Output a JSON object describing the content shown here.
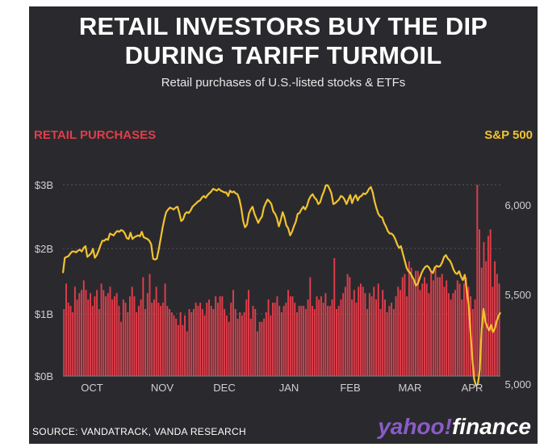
{
  "title_line1": "RETAIL INVESTORS BUY THE DIP",
  "title_line2": "DURING TARIFF TURMOIL",
  "subtitle": "Retail purchases of U.S.-listed stocks & ETFs",
  "left_axis_title": "RETAIL PURCHASES",
  "right_axis_title": "S&P 500",
  "source": "SOURCE: VANDATRACK, VANDA RESEARCH",
  "logo_yahoo": "yahoo!",
  "logo_finance": "finance",
  "colors": {
    "background": "#2a2a2e",
    "bars": "#e23d4a",
    "line": "#f2c230",
    "grid": "#55555a",
    "text": "#cfcfcf"
  },
  "chart_data": {
    "type": "bar+line",
    "x_labels": [
      "OCT",
      "NOV",
      "DEC",
      "JAN",
      "FEB",
      "MAR",
      "APR"
    ],
    "left_axis": {
      "ticks": [
        "$0B",
        "$1B",
        "$2B",
        "$3B"
      ],
      "range": [
        0,
        3.2
      ],
      "unit": "USD billions"
    },
    "right_axis": {
      "ticks": [
        "5,000",
        "5,500",
        "6,000"
      ],
      "range": [
        4900,
        6150
      ]
    },
    "grid": true,
    "series": [
      {
        "kind": "bar",
        "values": [
          1.05,
          1.45,
          1.15,
          1.1,
          1.0,
          1.4,
          1.2,
          1.3,
          1.35,
          1.5,
          1.35,
          1.2,
          1.3,
          1.1,
          1.25,
          1.35,
          1.05,
          1.45,
          1.35,
          1.25,
          1.3,
          1.4,
          1.2,
          1.25,
          1.3,
          1.1,
          0.85,
          1.2,
          1.15,
          1.0,
          1.25,
          1.4,
          1.25,
          1.0,
          1.1,
          1.2,
          1.55,
          1.05,
          1.3,
          1.6,
          1.15,
          1.2,
          1.4,
          1.15,
          1.1,
          1.15,
          1.45,
          1.1,
          1.05,
          1.0,
          0.95,
          0.9,
          0.8,
          1.0,
          0.8,
          0.95,
          0.7,
          1.05,
          1.0,
          1.05,
          1.15,
          1.1,
          1.15,
          1.05,
          0.95,
          1.15,
          1.2,
          1.1,
          1.05,
          1.25,
          1.15,
          1.25,
          1.25,
          1.05,
          0.95,
          0.85,
          1.15,
          1.35,
          1.05,
          0.9,
          1.0,
          0.95,
          1.0,
          1.2,
          1.35,
          0.9,
          1.1,
          1.05,
          0.7,
          0.85,
          0.85,
          0.9,
          1.0,
          1.2,
          0.95,
          1.15,
          1.15,
          1.25,
          1.1,
          1.0,
          1.1,
          1.15,
          1.35,
          1.25,
          1.25,
          1.15,
          1.0,
          1.1,
          1.1,
          1.1,
          1.05,
          1.2,
          1.55,
          1.1,
          1.05,
          1.25,
          1.2,
          1.25,
          1.15,
          1.3,
          1.1,
          1.1,
          1.2,
          1.85,
          1.05,
          1.1,
          1.2,
          1.3,
          1.4,
          1.6,
          1.55,
          1.2,
          1.35,
          1.15,
          1.4,
          1.45,
          1.4,
          1.3,
          1.05,
          1.3,
          1.25,
          1.4,
          1.2,
          1.45,
          1.05,
          1.35,
          1.2,
          1.0,
          1.1,
          1.15,
          1.05,
          1.25,
          1.4,
          1.35,
          1.55,
          1.6,
          1.25,
          1.8,
          1.7,
          1.5,
          1.65,
          1.65,
          1.35,
          1.45,
          1.55,
          1.45,
          1.3,
          1.65,
          1.5,
          1.7,
          1.55,
          1.55,
          1.6,
          1.4,
          1.5,
          1.3,
          1.2,
          1.3,
          1.35,
          1.5,
          1.45,
          1.2,
          1.45,
          1.55,
          1.4,
          1.25,
          1.05,
          1.2,
          3.0,
          2.3,
          1.7,
          2.1,
          1.8,
          2.2,
          2.3,
          1.4,
          1.8,
          1.6,
          1.45
        ]
      },
      {
        "kind": "line",
        "values": [
          5620,
          5705,
          5710,
          5715,
          5730,
          5740,
          5740,
          5735,
          5745,
          5750,
          5740,
          5760,
          5770,
          5710,
          5720,
          5730,
          5755,
          5705,
          5720,
          5745,
          5775,
          5800,
          5800,
          5810,
          5805,
          5840,
          5835,
          5830,
          5845,
          5855,
          5850,
          5860,
          5855,
          5840,
          5815,
          5810,
          5845,
          5810,
          5820,
          5825,
          5830,
          5825,
          5850,
          5820,
          5815,
          5810,
          5800,
          5780,
          5700,
          5695,
          5700,
          5750,
          5810,
          5870,
          5920,
          5960,
          5975,
          5985,
          5980,
          5975,
          5985,
          5990,
          5955,
          5910,
          5920,
          5950,
          5960,
          5955,
          5970,
          5990,
          6000,
          6010,
          6020,
          6025,
          6040,
          6050,
          6040,
          6055,
          6065,
          6075,
          6090,
          6085,
          6080,
          6090,
          6080,
          6075,
          6070,
          6070,
          6050,
          6080,
          6070,
          6075,
          6065,
          6060,
          6030,
          5980,
          5910,
          5875,
          5890,
          5950,
          5975,
          5990,
          5950,
          5925,
          5900,
          5920,
          5935,
          5985,
          6010,
          6030,
          6020,
          6005,
          5965,
          5950,
          5925,
          5880,
          5915,
          5960,
          5930,
          5885,
          5870,
          5830,
          5850,
          5880,
          5905,
          5950,
          5955,
          5975,
          5990,
          5975,
          5995,
          6030,
          6050,
          6060,
          6040,
          6030,
          6005,
          6015,
          6050,
          6075,
          6110,
          6110,
          6090,
          6065,
          6005,
          6010,
          6020,
          6030,
          6050,
          6045,
          6030,
          6005,
          6030,
          6055,
          6010,
          6040,
          6055,
          6025,
          6045,
          6050,
          6065,
          6060,
          6070,
          6090,
          6100,
          6070,
          6020,
          5980,
          5950,
          5935,
          5930,
          5900,
          5880,
          5855,
          5840,
          5840,
          5830,
          5810,
          5780,
          5760,
          5770,
          5730,
          5690,
          5650,
          5630,
          5620,
          5600,
          5580,
          5550,
          5560,
          5590,
          5620,
          5640,
          5655,
          5660,
          5650,
          5630,
          5620,
          5650,
          5660,
          5655,
          5660,
          5680,
          5710,
          5720,
          5700,
          5690,
          5670,
          5640,
          5620,
          5615,
          5630,
          5600,
          5580,
          5610,
          5530,
          5450,
          5300,
          5150,
          5030,
          4990,
          5000,
          5080,
          5300,
          5420,
          5350,
          5320,
          5300,
          5330,
          5290,
          5310,
          5350,
          5380,
          5400
        ]
      }
    ]
  }
}
